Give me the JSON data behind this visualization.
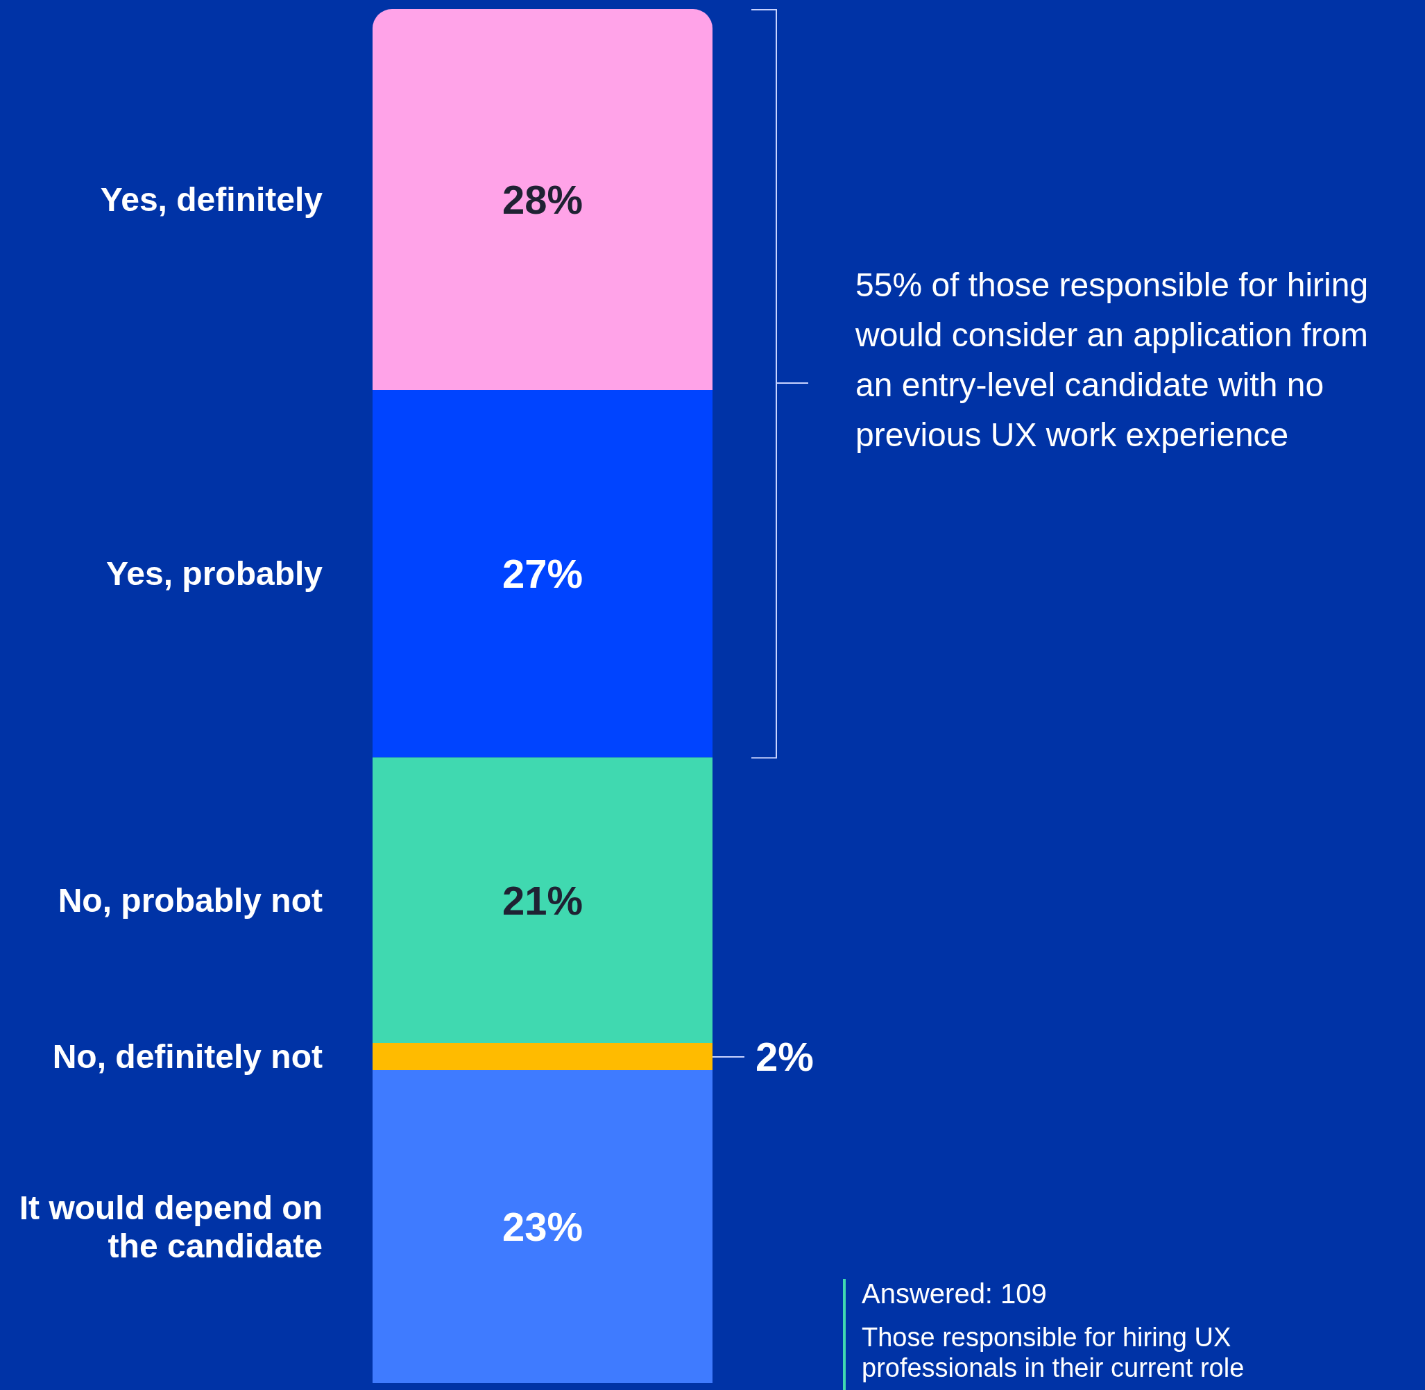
{
  "chart_data": {
    "type": "bar",
    "stacked": true,
    "categories": [
      null
    ],
    "ylim": [
      0,
      101
    ],
    "legend": false,
    "series": [
      {
        "name": "It would depend on the candidate",
        "color": "#3f7bff",
        "values": [
          23
        ],
        "value_labels": [
          "23%"
        ]
      },
      {
        "name": "No, definitely not",
        "color": "#ffbb00",
        "values": [
          2
        ],
        "value_labels": [
          "2%"
        ]
      },
      {
        "name": "No, probably not",
        "color": "#40d9b0",
        "values": [
          21
        ],
        "value_labels": [
          "21%"
        ]
      },
      {
        "name": "Yes, probably",
        "color": "#0044ff",
        "values": [
          27
        ],
        "value_labels": [
          "27%"
        ]
      },
      {
        "name": "Yes, definitely",
        "color": "#ffa3e8",
        "values": [
          28
        ],
        "value_labels": [
          "28%"
        ]
      }
    ],
    "annotations": [
      "55% of those responsible for hiring would consider an application from an entry-level candidate with no previous UX work experience",
      "Answered: 109",
      "Those responsible for hiring UX professionals in their current role"
    ]
  }
}
